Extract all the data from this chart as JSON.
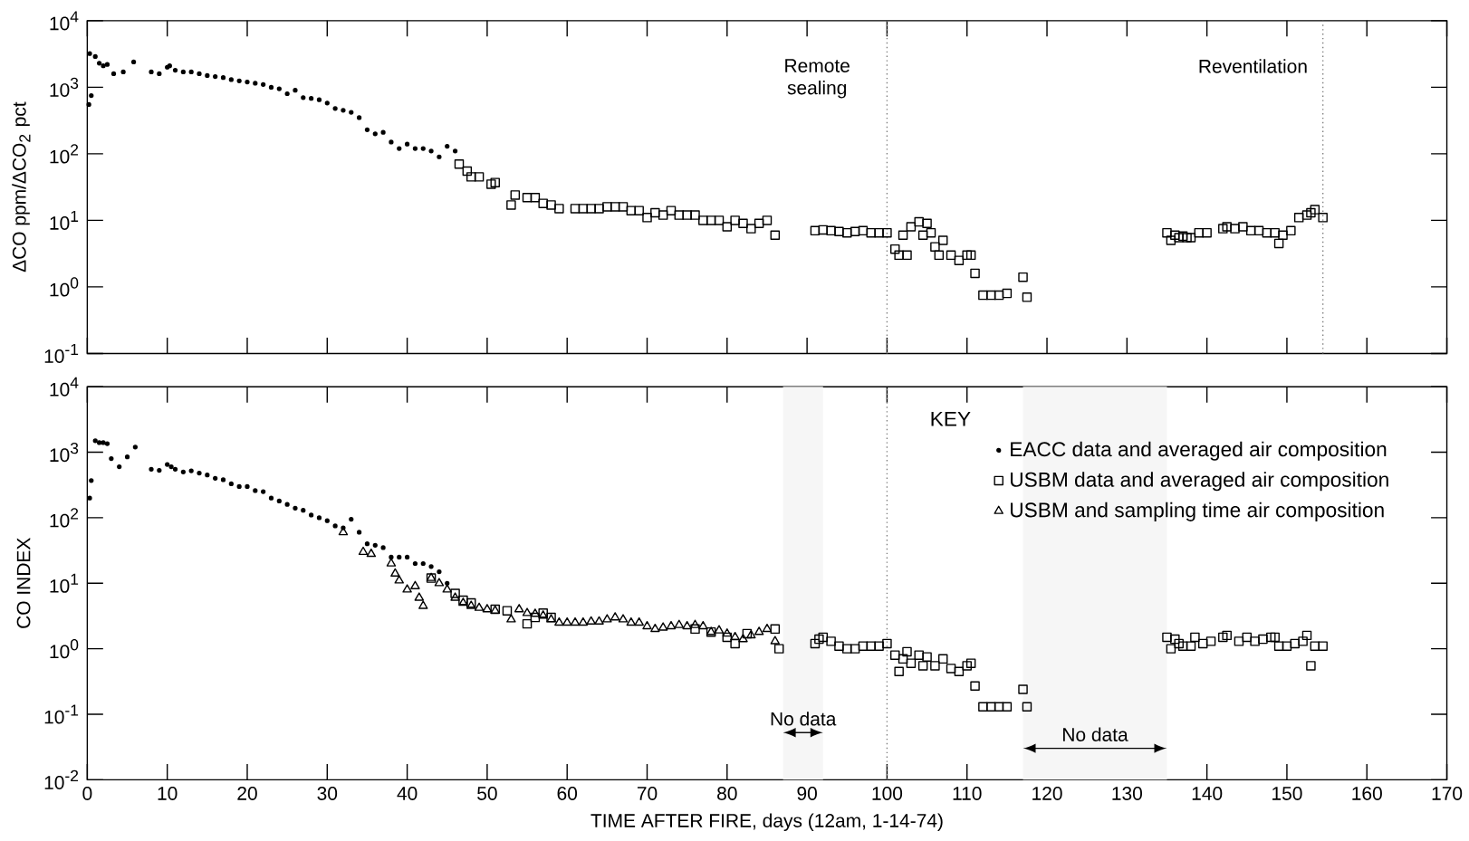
{
  "chart_data": [
    {
      "type": "scatter",
      "ylabel": "ΔCO ppm/ΔCO$_{2}$ pct",
      "log": "y",
      "tick_labels": "y",
      "xlim": [
        0,
        170
      ],
      "xticks": [
        0,
        10,
        20,
        30,
        40,
        50,
        60,
        70,
        80,
        90,
        100,
        110,
        120,
        130,
        140,
        150,
        160,
        170
      ],
      "ylim": [
        0.1,
        10000
      ],
      "yticks": [
        {
          "value": 0.1,
          "label": "10$^{-1}$"
        },
        {
          "value": 1,
          "label": "10$^{0}$"
        },
        {
          "value": 10,
          "label": "10$^{1}$"
        },
        {
          "value": 100,
          "label": "10$^{2}$"
        },
        {
          "value": 1000,
          "label": "10$^{3}$"
        },
        {
          "value": 10000,
          "label": "10$^{4}$"
        }
      ],
      "ref_lines": [
        {
          "axis": "x",
          "value": 100,
          "label": "Remote sealing",
          "line_style": "dotted"
        },
        {
          "axis": "x",
          "value": 154.5,
          "label": "Reventilation",
          "line_style": "dotted"
        }
      ],
      "series": [
        {
          "color": "#000000",
          "marker": "circle",
          "x": [
            0.2,
            0.5,
            0.3,
            1,
            1.5,
            2,
            2.5,
            3.3,
            4.5,
            5.8,
            8,
            9,
            10,
            10.3,
            11,
            12,
            13,
            14,
            15,
            16,
            17,
            18,
            19,
            20,
            21,
            22,
            23,
            24,
            25,
            26,
            27,
            28,
            29,
            30,
            31,
            32,
            33,
            34,
            35,
            36,
            37,
            38,
            39,
            40,
            41,
            42,
            43,
            44,
            45,
            46
          ],
          "values": [
            550,
            750,
            3200,
            2900,
            2300,
            2100,
            2200,
            1600,
            1700,
            2400,
            1700,
            1600,
            2000,
            2100,
            1800,
            1700,
            1700,
            1600,
            1500,
            1450,
            1400,
            1300,
            1250,
            1200,
            1150,
            1100,
            1000,
            950,
            800,
            900,
            700,
            680,
            650,
            580,
            480,
            450,
            420,
            350,
            230,
            200,
            210,
            150,
            120,
            140,
            120,
            120,
            110,
            90,
            130,
            110
          ]
        },
        {
          "color": "#000000",
          "marker": "square",
          "x": [
            46.5,
            47.5,
            48,
            49,
            50.5,
            51,
            53,
            53.5,
            55,
            56,
            57,
            58,
            59,
            61,
            62,
            63,
            64,
            65,
            66,
            67,
            68,
            69,
            70,
            71,
            72,
            73,
            74,
            75,
            76,
            77,
            78,
            79,
            80,
            81,
            82,
            83,
            84,
            85,
            86,
            91,
            92,
            93,
            94,
            95,
            96,
            97,
            98,
            99,
            100,
            101,
            101.5,
            102,
            102.5,
            103,
            104,
            104.5,
            105,
            105.5,
            106,
            106.5,
            107,
            108,
            109,
            110,
            110.5,
            111,
            112,
            113,
            114,
            115,
            117,
            117.5,
            135,
            135.5,
            136,
            136.5,
            137,
            137.5,
            138,
            139,
            140,
            142,
            142.5,
            143.5,
            144.5,
            145.5,
            146.5,
            147.5,
            148.5,
            149,
            149.5,
            150.5,
            151.5,
            152.5,
            153,
            153.5,
            154.5
          ],
          "values": [
            70,
            55,
            45,
            45,
            35,
            37,
            17,
            24,
            22,
            22,
            18,
            17,
            15,
            15,
            15,
            15,
            15,
            16,
            16,
            16,
            14,
            14,
            11,
            13,
            12,
            14,
            12,
            12,
            12,
            10,
            10,
            10,
            8,
            10,
            9,
            7.5,
            9,
            10,
            6,
            7,
            7.2,
            7,
            6.8,
            6.5,
            6.8,
            7,
            6.5,
            6.5,
            6.5,
            3.7,
            3,
            6,
            3,
            8,
            9.5,
            6,
            9,
            6.5,
            4,
            3,
            5,
            3,
            2.5,
            3,
            3,
            1.6,
            0.75,
            0.75,
            0.75,
            0.8,
            1.4,
            0.7,
            6.5,
            5,
            6,
            5.5,
            5.8,
            5.5,
            5.5,
            6.5,
            6.5,
            7.5,
            8,
            7.5,
            8,
            7,
            7,
            6.5,
            6.5,
            4.5,
            6,
            7,
            11,
            12,
            13,
            14.5,
            11
          ]
        }
      ]
    },
    {
      "type": "scatter",
      "xlabel": "TIME AFTER FIRE, days (12am, 1-14-74)",
      "ylabel": "CO INDEX",
      "log": "y",
      "legend": "top right",
      "legend_title": "KEY",
      "xlim": [
        0,
        170
      ],
      "xticks": [
        0,
        10,
        20,
        30,
        40,
        50,
        60,
        70,
        80,
        90,
        100,
        110,
        120,
        130,
        140,
        150,
        160,
        170
      ],
      "ylim": [
        0.01,
        10000
      ],
      "yticks": [
        {
          "value": 0.01,
          "label": "10$^{-2}$"
        },
        {
          "value": 0.1,
          "label": "10$^{-1}$"
        },
        {
          "value": 1,
          "label": "10$^{0}$"
        },
        {
          "value": 10,
          "label": "10$^{1}$"
        },
        {
          "value": 100,
          "label": "10$^{2}$"
        },
        {
          "value": 1000,
          "label": "10$^{3}$"
        },
        {
          "value": 10000,
          "label": "10$^{4}$"
        }
      ],
      "ref_lines": [
        {
          "axis": "x",
          "value": 100,
          "line_style": "dotted"
        }
      ],
      "bands": [
        {
          "axis": "x",
          "from": 87,
          "to": 92,
          "label": "No data"
        },
        {
          "axis": "x",
          "from": 117,
          "to": 135,
          "label": "No data"
        }
      ],
      "series": [
        {
          "name": "EACC data and averaged air composition",
          "color": "#000000",
          "marker": "circle",
          "x": [
            0.3,
            0.5,
            1,
            1.5,
            2,
            2.5,
            3,
            4,
            5,
            6,
            8,
            9,
            10,
            10.5,
            11,
            12,
            13,
            14,
            15,
            16,
            17,
            18,
            19,
            20,
            21,
            22,
            23,
            24,
            25,
            26,
            27,
            28,
            29,
            30,
            31,
            32,
            33,
            34,
            35,
            36,
            37,
            38,
            39,
            40,
            41,
            42,
            43,
            44,
            45
          ],
          "values": [
            200,
            370,
            1500,
            1400,
            1400,
            1350,
            800,
            600,
            850,
            1200,
            550,
            530,
            650,
            600,
            550,
            500,
            520,
            480,
            450,
            400,
            380,
            330,
            300,
            300,
            260,
            250,
            200,
            180,
            160,
            140,
            130,
            110,
            100,
            90,
            75,
            70,
            95,
            60,
            40,
            38,
            35,
            25,
            25,
            25,
            20,
            20,
            18,
            15,
            10
          ]
        },
        {
          "name": "USBM data and averaged air composition",
          "color": "#000000",
          "marker": "square",
          "x": [
            43,
            46,
            47,
            48,
            51,
            52.5,
            55,
            56,
            57,
            58,
            76,
            78,
            80,
            81,
            82.5,
            86,
            86.5,
            91,
            91.5,
            92,
            93,
            94,
            95,
            96,
            97,
            98,
            99,
            100,
            101,
            101.5,
            102,
            102.5,
            103,
            104,
            104.5,
            105,
            106,
            107,
            108,
            109,
            110,
            110.5,
            111,
            112,
            113,
            114,
            115,
            117,
            117.5,
            135,
            135.5,
            136,
            136.5,
            137,
            138,
            138.5,
            139.5,
            140.5,
            142,
            142.5,
            144,
            145,
            146,
            147,
            148,
            148.5,
            149,
            150,
            151,
            152,
            152.5,
            153,
            153.5,
            154.5
          ],
          "values": [
            12,
            7,
            5.5,
            5,
            4,
            3.8,
            2.4,
            3,
            3.5,
            3,
            2,
            1.8,
            1.5,
            1.2,
            1.7,
            2,
            1,
            1.2,
            1.4,
            1.5,
            1.3,
            1.1,
            1,
            1,
            1.1,
            1.1,
            1.1,
            1.2,
            0.8,
            0.45,
            0.7,
            0.9,
            0.6,
            0.8,
            0.55,
            0.75,
            0.55,
            0.7,
            0.5,
            0.45,
            0.55,
            0.6,
            0.27,
            0.13,
            0.13,
            0.13,
            0.13,
            0.24,
            0.13,
            1.5,
            1,
            1.4,
            1.2,
            1.1,
            1.1,
            1.5,
            1.2,
            1.3,
            1.5,
            1.6,
            1.3,
            1.5,
            1.3,
            1.4,
            1.5,
            1.5,
            1.1,
            1.1,
            1.2,
            1.3,
            1.6,
            0.55,
            1.1,
            1.1
          ]
        },
        {
          "name": "USBM and sampling time air composition",
          "color": "#000000",
          "marker": "triangle",
          "x": [
            32,
            34.5,
            35.5,
            38,
            38.5,
            39,
            40,
            41,
            41.5,
            42,
            43,
            44,
            45,
            46,
            47,
            48,
            49,
            50,
            51,
            53,
            54,
            55,
            56,
            57,
            58,
            59,
            60,
            61,
            62,
            63,
            64,
            65,
            66,
            67,
            68,
            69,
            70,
            71,
            72,
            73,
            74,
            75,
            76,
            77,
            78,
            79,
            80,
            81,
            82,
            83,
            84,
            85,
            86
          ],
          "values": [
            60,
            30,
            28,
            20,
            14,
            11,
            8,
            9,
            6,
            4.5,
            12,
            10,
            8,
            6,
            5,
            4.5,
            4.2,
            4,
            3.8,
            2.8,
            4,
            3.5,
            3.4,
            3.2,
            2.8,
            2.5,
            2.5,
            2.5,
            2.5,
            2.6,
            2.6,
            2.8,
            3,
            2.8,
            2.5,
            2.5,
            2.2,
            2,
            2.1,
            2.2,
            2.3,
            2.2,
            2.3,
            2.2,
            1.8,
            1.9,
            1.7,
            1.5,
            1.4,
            1.6,
            1.8,
            2,
            1.3
          ]
        }
      ]
    }
  ]
}
